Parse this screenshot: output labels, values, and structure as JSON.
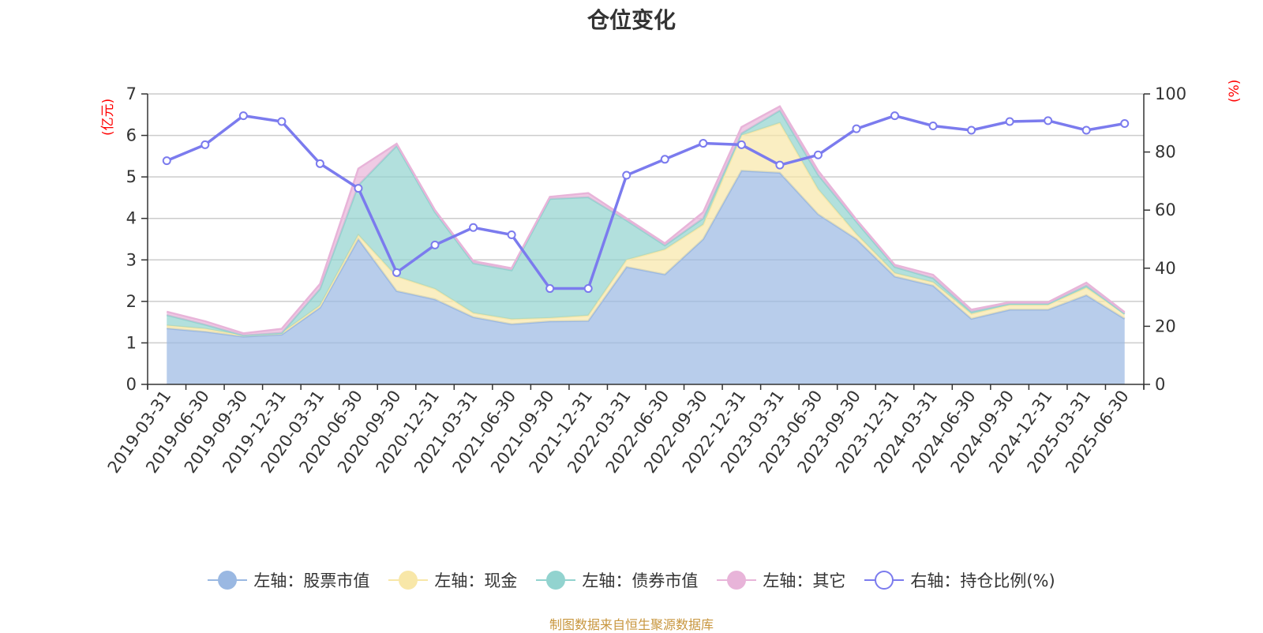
{
  "title": "仓位变化",
  "source_note": "制图数据来自恒生聚源数据库",
  "colors": {
    "stock": "#9ab8e2",
    "cash": "#f8e7a8",
    "bond": "#92d3cf",
    "other": "#e8b4d9",
    "ratio": "#7b7bee",
    "axis_label": "#ff0000",
    "source": "#c8963e"
  },
  "legend": [
    {
      "label": "左轴：股票市值",
      "key": "stock"
    },
    {
      "label": "左轴：现金",
      "key": "cash"
    },
    {
      "label": "左轴：债券市值",
      "key": "bond"
    },
    {
      "label": "左轴：其它",
      "key": "other"
    },
    {
      "label": "右轴：持仓比例(%)",
      "key": "ratio"
    }
  ],
  "chart_data": {
    "type": "area",
    "title": "仓位变化",
    "ylabel_left": "(亿元)",
    "ylabel_right": "(%)",
    "ylim_left": [
      0,
      7
    ],
    "ylim_right": [
      0,
      100
    ],
    "yticks_left": [
      0,
      1,
      2,
      3,
      4,
      5,
      6,
      7
    ],
    "yticks_right": [
      0,
      20,
      40,
      60,
      80,
      100
    ],
    "grid": true,
    "stacked": true,
    "categories": [
      "2019-03-31",
      "2019-06-30",
      "2019-09-30",
      "2019-12-31",
      "2020-03-31",
      "2020-06-30",
      "2020-09-30",
      "2020-12-31",
      "2021-03-31",
      "2021-06-30",
      "2021-09-30",
      "2021-12-31",
      "2022-03-31",
      "2022-06-30",
      "2022-09-30",
      "2022-12-31",
      "2023-03-31",
      "2023-06-30",
      "2023-09-30",
      "2023-12-31",
      "2024-03-31",
      "2024-06-30",
      "2024-09-30",
      "2024-12-31",
      "2025-03-31",
      "2025-06-30"
    ],
    "series": [
      {
        "name": "左轴：股票市值",
        "axis": "left",
        "values": [
          1.35,
          1.27,
          1.15,
          1.2,
          1.85,
          3.5,
          2.25,
          2.05,
          1.62,
          1.45,
          1.52,
          1.53,
          2.83,
          2.65,
          3.5,
          5.15,
          5.1,
          4.1,
          3.5,
          2.6,
          2.38,
          1.58,
          1.8,
          1.8,
          2.15,
          1.58
        ]
      },
      {
        "name": "左轴：现金",
        "axis": "left",
        "values": [
          0.07,
          0.07,
          0.03,
          0.04,
          0.05,
          0.1,
          0.35,
          0.25,
          0.1,
          0.12,
          0.08,
          0.13,
          0.17,
          0.6,
          0.35,
          0.85,
          1.2,
          0.6,
          0.12,
          0.08,
          0.08,
          0.12,
          0.12,
          0.12,
          0.18,
          0.12
        ]
      },
      {
        "name": "左轴：债券市值",
        "axis": "left",
        "values": [
          0.25,
          0.1,
          0.0,
          0.0,
          0.4,
          1.2,
          3.15,
          1.85,
          1.2,
          1.18,
          2.87,
          2.85,
          0.95,
          0.1,
          0.15,
          0.05,
          0.3,
          0.35,
          0.3,
          0.15,
          0.1,
          0.05,
          0.02,
          0.02,
          0.05,
          0.0
        ]
      },
      {
        "name": "左轴：其它",
        "axis": "left",
        "values": [
          0.08,
          0.08,
          0.05,
          0.1,
          0.12,
          0.4,
          0.05,
          0.05,
          0.05,
          0.05,
          0.05,
          0.1,
          0.05,
          0.05,
          0.15,
          0.15,
          0.1,
          0.1,
          0.05,
          0.05,
          0.08,
          0.05,
          0.04,
          0.04,
          0.07,
          0.04
        ]
      },
      {
        "name": "右轴：持仓比例(%)",
        "axis": "right",
        "type": "line",
        "values": [
          77,
          82.5,
          92.5,
          90.5,
          76,
          67.5,
          38.5,
          48,
          54,
          51.5,
          33,
          33,
          72,
          77.5,
          83,
          82.5,
          75.5,
          79,
          88,
          92.5,
          89,
          87.5,
          90.5,
          90.8,
          87.5,
          89.8
        ]
      }
    ]
  }
}
